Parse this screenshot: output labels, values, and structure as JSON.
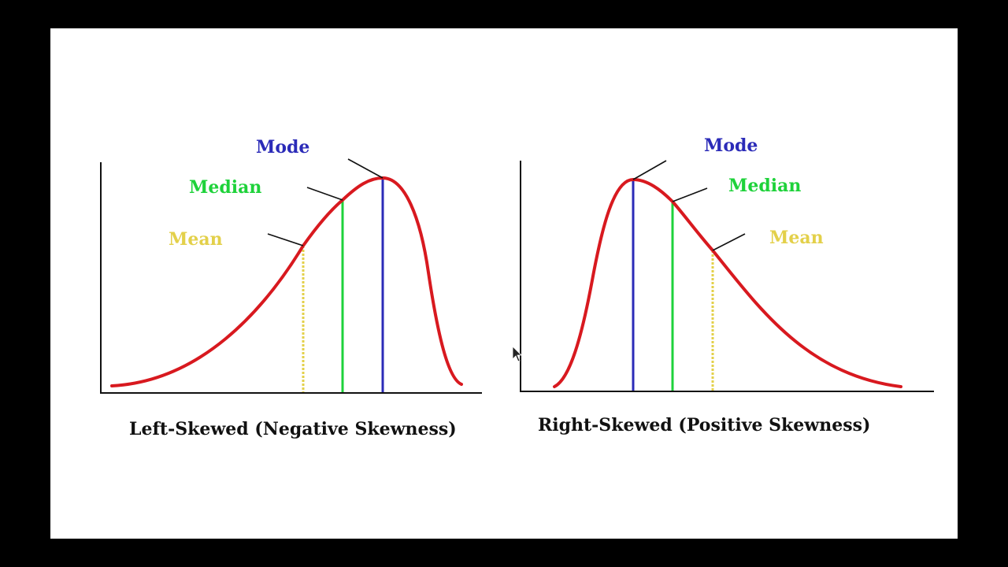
{
  "colors": {
    "background": "#ffffff",
    "frame": "#000000",
    "curve": "#d8191f",
    "mode": "#2b2bb8",
    "median": "#1ed23a",
    "mean": "#e3d04a",
    "axis": "#111111"
  },
  "panels": [
    {
      "id": "left",
      "caption": "Left-Skewed (Negative Skewness)",
      "labels": {
        "mode": "Mode",
        "median": "Median",
        "mean": "Mean"
      }
    },
    {
      "id": "right",
      "caption": "Right-Skewed (Positive Skewness)",
      "labels": {
        "mode": "Mode",
        "median": "Median",
        "mean": "Mean"
      }
    }
  ]
}
